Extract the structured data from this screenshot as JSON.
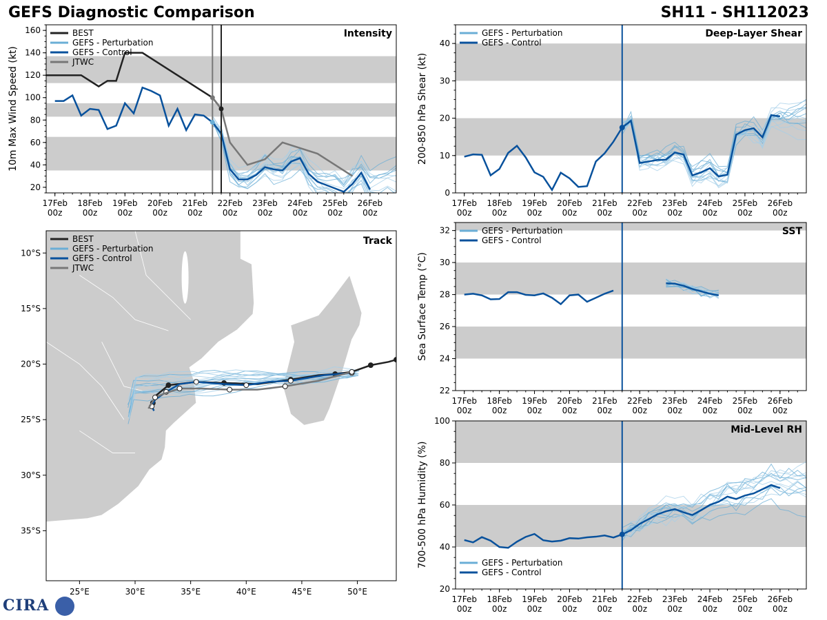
{
  "header": {
    "title_left": "GEFS Diagnostic Comparison",
    "title_right": "SH11 - SH112023"
  },
  "logo": {
    "text": "CIRA"
  },
  "colors": {
    "best": "#222222",
    "perturbation": "#6aaed6",
    "control": "#08519c",
    "jtwc": "#777777",
    "band": "#cccccc",
    "land": "#cccccc",
    "ensemble_light": "#a6cfe8"
  },
  "chart_data": [
    {
      "id": "intensity",
      "type": "line",
      "title": "Intensity",
      "ylabel": "10m Max Wind Speed (kt)",
      "xlabel": "",
      "ylim": [
        15,
        165
      ],
      "yticks": [
        20,
        40,
        60,
        80,
        100,
        120,
        140,
        160
      ],
      "xlim": [
        -0.25,
        9.75
      ],
      "xticks": [
        0,
        1,
        2,
        3,
        4,
        5,
        6,
        7,
        8,
        9
      ],
      "xtick_labels": [
        "17Feb\n00z",
        "18Feb\n00z",
        "19Feb\n00z",
        "20Feb\n00z",
        "21Feb\n00z",
        "22Feb\n00z",
        "23Feb\n00z",
        "24Feb\n00z",
        "25Feb\n00z",
        "26Feb\n00z"
      ],
      "bands": [
        [
          35,
          65
        ],
        [
          83,
          95
        ],
        [
          113,
          137
        ]
      ],
      "vlines": [
        {
          "x": 4.5,
          "color": "#777777"
        },
        {
          "x": 4.75,
          "color": "#222222"
        }
      ],
      "legend": [
        "BEST",
        "GEFS - Perturbation",
        "GEFS - Control",
        "JTWC"
      ],
      "series": [
        {
          "name": "BEST",
          "x": [
            -0.25,
            0.75,
            1.25,
            1.5,
            1.75,
            2.0,
            2.5,
            3.0,
            3.5,
            4.0,
            4.5,
            4.75
          ],
          "y": [
            120,
            120,
            110,
            115,
            115,
            140,
            140,
            130,
            120,
            110,
            100,
            90
          ]
        },
        {
          "name": "GEFS - Control",
          "x": [
            0,
            0.25,
            0.5,
            0.75,
            1.0,
            1.25,
            1.5,
            1.75,
            2.0,
            2.25,
            2.5,
            2.75,
            3.0,
            3.25,
            3.5,
            3.75,
            4.0,
            4.25,
            4.5,
            4.75,
            5.0,
            5.25,
            5.5,
            5.75,
            6.0,
            6.25,
            6.5,
            6.75,
            7.0,
            7.25,
            7.5,
            7.75,
            8.0,
            8.25,
            8.5,
            8.75,
            9.0
          ],
          "y": [
            97,
            97,
            102,
            84,
            90,
            89,
            72,
            75,
            95,
            86,
            109,
            106,
            102,
            75,
            90,
            71,
            85,
            84,
            78,
            68,
            36,
            27,
            27,
            31,
            38,
            36,
            35,
            43,
            46,
            32,
            25,
            22,
            19,
            16,
            23,
            33,
            18
          ]
        },
        {
          "name": "JTWC",
          "x": [
            4.5,
            4.75,
            5.0,
            5.5,
            6.0,
            6.5,
            7.0,
            7.5,
            8.0,
            8.5
          ],
          "y": [
            100,
            90,
            60,
            40,
            45,
            60,
            55,
            50,
            40,
            30
          ]
        }
      ]
    },
    {
      "id": "shear",
      "type": "line",
      "title": "Deep-Layer Shear",
      "ylabel": "200-850 hPa Shear (kt)",
      "xlabel": "",
      "ylim": [
        0,
        45
      ],
      "yticks": [
        0,
        10,
        20,
        30,
        40
      ],
      "xlim": [
        -0.25,
        9.75
      ],
      "xticks": [
        0,
        1,
        2,
        3,
        4,
        5,
        6,
        7,
        8,
        9
      ],
      "xtick_labels": [
        "17Feb\n00z",
        "18Feb\n00z",
        "19Feb\n00z",
        "20Feb\n00z",
        "21Feb\n00z",
        "22Feb\n00z",
        "23Feb\n00z",
        "24Feb\n00z",
        "25Feb\n00z",
        "26Feb\n00z"
      ],
      "bands": [
        [
          10,
          20
        ],
        [
          30,
          40
        ]
      ],
      "vlines": [
        {
          "x": 4.5,
          "color": "#08519c"
        }
      ],
      "legend": [
        "GEFS - Perturbation",
        "GEFS - Control"
      ],
      "series": [
        {
          "name": "GEFS - Control",
          "x": [
            0,
            0.25,
            0.5,
            0.75,
            1.0,
            1.25,
            1.5,
            1.75,
            2.0,
            2.25,
            2.5,
            2.75,
            3.0,
            3.25,
            3.5,
            3.75,
            4.0,
            4.25,
            4.5,
            4.75,
            5.0,
            5.25,
            5.5,
            5.75,
            6.0,
            6.25,
            6.5,
            6.75,
            7.0,
            7.25,
            7.5,
            7.75,
            8.0,
            8.25,
            8.5,
            8.75,
            9.0
          ],
          "y": [
            9.7,
            10.3,
            10.2,
            4.7,
            6.4,
            10.7,
            12.6,
            9.5,
            5.5,
            4.3,
            0.8,
            5.4,
            3.9,
            1.6,
            1.8,
            8.4,
            10.6,
            13.7,
            17.5,
            19.3,
            8.0,
            8.4,
            8.8,
            8.9,
            10.8,
            10.3,
            4.7,
            5.5,
            6.6,
            4.4,
            4.9,
            15.6,
            16.8,
            17.3,
            14.9,
            20.8,
            20.5
          ]
        }
      ]
    },
    {
      "id": "sst",
      "type": "line",
      "title": "SST",
      "ylabel": "Sea Surface Temp (°C)",
      "xlabel": "",
      "ylim": [
        22,
        32.5
      ],
      "yticks": [
        22,
        24,
        26,
        28,
        30,
        32
      ],
      "xlim": [
        -0.25,
        9.75
      ],
      "xticks": [
        0,
        1,
        2,
        3,
        4,
        5,
        6,
        7,
        8,
        9
      ],
      "xtick_labels": [
        "17Feb\n00z",
        "18Feb\n00z",
        "19Feb\n00z",
        "20Feb\n00z",
        "21Feb\n00z",
        "22Feb\n00z",
        "23Feb\n00z",
        "24Feb\n00z",
        "25Feb\n00z",
        "26Feb\n00z"
      ],
      "bands": [
        [
          24,
          26
        ],
        [
          28,
          30
        ],
        [
          32,
          32.5
        ]
      ],
      "vlines": [
        {
          "x": 4.5,
          "color": "#08519c"
        }
      ],
      "legend": [
        "GEFS - Perturbation",
        "GEFS - Control"
      ],
      "series": [
        {
          "name": "GEFS - Control",
          "x": [
            0,
            0.25,
            0.5,
            0.75,
            1.0,
            1.25,
            1.5,
            1.75,
            2.0,
            2.25,
            2.5,
            2.75,
            3.0,
            3.25,
            3.5,
            3.75,
            4.0,
            4.25
          ],
          "y": [
            28.0,
            28.05,
            27.95,
            27.7,
            27.72,
            28.15,
            28.15,
            27.98,
            27.95,
            28.07,
            27.8,
            27.4,
            27.95,
            28.0,
            27.55,
            27.8,
            28.05,
            28.25
          ]
        },
        {
          "name": "GEFS - Control (segment 2)",
          "x": [
            5.75,
            6.0,
            6.25,
            6.5,
            6.75,
            7.0,
            7.25
          ],
          "y": [
            28.7,
            28.68,
            28.55,
            28.35,
            28.2,
            28.05,
            27.95
          ]
        }
      ]
    },
    {
      "id": "rh",
      "type": "line",
      "title": "Mid-Level RH",
      "ylabel": "700-500 hPa Humidity (%)",
      "xlabel": "",
      "ylim": [
        20,
        100
      ],
      "yticks": [
        20,
        40,
        60,
        80,
        100
      ],
      "xlim": [
        -0.25,
        9.75
      ],
      "xticks": [
        0,
        1,
        2,
        3,
        4,
        5,
        6,
        7,
        8,
        9
      ],
      "xtick_labels": [
        "17Feb\n00z",
        "18Feb\n00z",
        "19Feb\n00z",
        "20Feb\n00z",
        "21Feb\n00z",
        "22Feb\n00z",
        "23Feb\n00z",
        "24Feb\n00z",
        "25Feb\n00z",
        "26Feb\n00z"
      ],
      "bands": [
        [
          40,
          60
        ],
        [
          80,
          100
        ]
      ],
      "vlines": [
        {
          "x": 4.5,
          "color": "#08519c"
        }
      ],
      "legend": [
        "GEFS - Perturbation",
        "GEFS - Control"
      ],
      "series": [
        {
          "name": "GEFS - Control",
          "x": [
            0,
            0.25,
            0.5,
            0.75,
            1.0,
            1.25,
            1.5,
            1.75,
            2.0,
            2.25,
            2.5,
            2.75,
            3.0,
            3.25,
            3.5,
            3.75,
            4.0,
            4.25,
            4.5,
            4.75,
            5.0,
            5.25,
            5.5,
            5.75,
            6.0,
            6.25,
            6.5,
            6.75,
            7.0,
            7.25,
            7.5,
            7.75,
            8.0,
            8.25,
            8.5,
            8.75,
            9.0
          ],
          "y": [
            43.3,
            42.2,
            44.7,
            43.0,
            40.0,
            39.6,
            42.5,
            44.8,
            46.2,
            43.2,
            42.6,
            43.0,
            44.2,
            44.0,
            44.6,
            44.9,
            45.5,
            44.5,
            46.0,
            48.0,
            51.0,
            53.2,
            55.5,
            57.0,
            58.0,
            56.5,
            55.2,
            57.5,
            60.0,
            61.5,
            64.0,
            62.8,
            64.5,
            65.5,
            67.5,
            69.5,
            68.0
          ]
        }
      ]
    },
    {
      "id": "track",
      "type": "scatter",
      "title": "Track",
      "lon_range": [
        22,
        53.5
      ],
      "lat_range": [
        -39.5,
        -8
      ],
      "xticks": [
        25,
        30,
        35,
        40,
        45,
        50
      ],
      "xtick_labels": [
        "25°E",
        "30°E",
        "35°E",
        "40°E",
        "45°E",
        "50°E"
      ],
      "yticks": [
        -10,
        -15,
        -20,
        -25,
        -30,
        -35
      ],
      "ytick_labels": [
        "10°S",
        "15°S",
        "20°S",
        "25°S",
        "30°S",
        "35°S"
      ],
      "legend": [
        "BEST",
        "GEFS - Perturbation",
        "GEFS - Control",
        "JTWC"
      ],
      "series": [
        {
          "name": "BEST",
          "lon": [
            53.5,
            52.8,
            51.2,
            49.5,
            48.0,
            46.5,
            44.0,
            41.0,
            38.0,
            35.5,
            33.0,
            31.8,
            31.6
          ],
          "lat": [
            -19.6,
            -19.8,
            -20.1,
            -20.7,
            -20.9,
            -21.0,
            -21.4,
            -21.8,
            -21.7,
            -21.6,
            -21.9,
            -22.9,
            -23.5
          ]
        },
        {
          "name": "GEFS - Control",
          "lon": [
            49.5,
            47.0,
            44.0,
            42.0,
            40.0,
            38.0,
            35.5,
            34.0,
            32.8,
            31.8,
            31.5,
            31.7
          ],
          "lat": [
            -20.8,
            -21.0,
            -21.5,
            -21.6,
            -21.9,
            -21.8,
            -21.6,
            -21.8,
            -22.5,
            -23.2,
            -23.8,
            -24.2
          ]
        },
        {
          "name": "JTWC",
          "lon": [
            49.5,
            46.5,
            43.5,
            41.0,
            38.5,
            36.0,
            34.0,
            32.5,
            31.8,
            31.2
          ],
          "lat": [
            -20.7,
            -21.5,
            -22.0,
            -22.3,
            -22.3,
            -22.2,
            -22.2,
            -22.7,
            -23.0,
            -24.0
          ]
        }
      ]
    }
  ]
}
